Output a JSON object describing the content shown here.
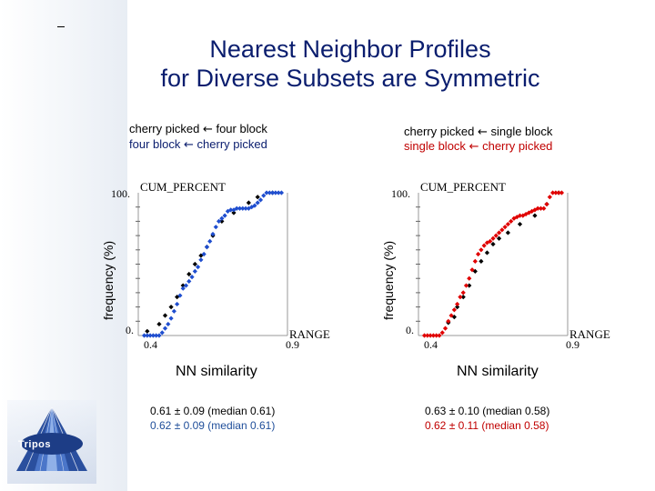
{
  "slide": {
    "title_line1": "Nearest Neighbor Profiles",
    "title_line2": "for Diverse Subsets are Symmetric",
    "logo_text": "Tripos"
  },
  "colors": {
    "title": "#0a1d6e",
    "blue_series": "#1f4ecf",
    "red_series": "#e00000",
    "black_series": "#000000"
  },
  "panels": [
    {
      "caption_line1_a": "cherry picked",
      "caption_line1_b": "four block",
      "caption_line2_a": "four block",
      "caption_line2_b": "cherry picked",
      "arrow": "←",
      "ylabel": "frequency (%)",
      "xlabel": "NN similarity",
      "stat_line1": "0.61 ± 0.09 (median 0.61)",
      "stat_line2": "0.62 ± 0.09 (median 0.61)"
    },
    {
      "caption_line1_a": "cherry picked",
      "caption_line1_b": "single block",
      "caption_line2_a": "single block",
      "caption_line2_b": "cherry picked",
      "arrow": "←",
      "ylabel": "frequency (%)",
      "xlabel": "NN similarity",
      "stat_line1": "0.63 ± 0.10 (median 0.58)",
      "stat_line2": "0.62 ± 0.11 (median 0.58)"
    }
  ],
  "chart_data": [
    {
      "type": "scatter",
      "title": "CUM_PERCENT",
      "xlabel": "RANGE",
      "ylabel": "frequency (%)",
      "xlim": [
        0.4,
        0.9
      ],
      "ylim": [
        0,
        100
      ],
      "x_ticks": [
        "0.4",
        "0.9"
      ],
      "y_ticks": [
        "0.",
        "100."
      ],
      "series": [
        {
          "name": "cherry picked vs four block",
          "color": "#000000",
          "points": [
            [
              0.43,
              3
            ],
            [
              0.47,
              8
            ],
            [
              0.49,
              14
            ],
            [
              0.51,
              20
            ],
            [
              0.53,
              27
            ],
            [
              0.55,
              35
            ],
            [
              0.57,
              43
            ],
            [
              0.59,
              50
            ],
            [
              0.61,
              56
            ],
            [
              0.63,
              62
            ],
            [
              0.65,
              70
            ],
            [
              0.68,
              80
            ],
            [
              0.72,
              86
            ],
            [
              0.77,
              93
            ],
            [
              0.8,
              97
            ],
            [
              0.85,
              100
            ]
          ]
        },
        {
          "name": "four block vs cherry picked",
          "color": "#1f4ecf",
          "points": [
            [
              0.42,
              0
            ],
            [
              0.43,
              0
            ],
            [
              0.44,
              0
            ],
            [
              0.45,
              0
            ],
            [
              0.46,
              0
            ],
            [
              0.47,
              0
            ],
            [
              0.48,
              2
            ],
            [
              0.49,
              5
            ],
            [
              0.5,
              8
            ],
            [
              0.51,
              12
            ],
            [
              0.52,
              17
            ],
            [
              0.53,
              22
            ],
            [
              0.54,
              28
            ],
            [
              0.55,
              33
            ],
            [
              0.56,
              35
            ],
            [
              0.57,
              38
            ],
            [
              0.58,
              41
            ],
            [
              0.59,
              45
            ],
            [
              0.6,
              48
            ],
            [
              0.61,
              53
            ],
            [
              0.62,
              57
            ],
            [
              0.63,
              62
            ],
            [
              0.64,
              66
            ],
            [
              0.65,
              71
            ],
            [
              0.66,
              76
            ],
            [
              0.67,
              80
            ],
            [
              0.68,
              82
            ],
            [
              0.69,
              84
            ],
            [
              0.7,
              87
            ],
            [
              0.71,
              88
            ],
            [
              0.72,
              88
            ],
            [
              0.73,
              89
            ],
            [
              0.74,
              89
            ],
            [
              0.75,
              89
            ],
            [
              0.76,
              89
            ],
            [
              0.77,
              89
            ],
            [
              0.78,
              90
            ],
            [
              0.79,
              91
            ],
            [
              0.8,
              93
            ],
            [
              0.81,
              95
            ],
            [
              0.82,
              98
            ],
            [
              0.83,
              100
            ],
            [
              0.84,
              100
            ],
            [
              0.85,
              100
            ],
            [
              0.86,
              100
            ],
            [
              0.87,
              100
            ],
            [
              0.88,
              100
            ]
          ]
        }
      ]
    },
    {
      "type": "scatter",
      "title": "CUM_PERCENT",
      "xlabel": "RANGE",
      "ylabel": "frequency (%)",
      "xlim": [
        0.4,
        0.9
      ],
      "ylim": [
        0,
        100
      ],
      "x_ticks": [
        "0.4",
        "0.9"
      ],
      "y_ticks": [
        "0.",
        "100."
      ],
      "series": [
        {
          "name": "cherry picked vs single block",
          "color": "#000000",
          "points": [
            [
              0.5,
              9
            ],
            [
              0.52,
              13
            ],
            [
              0.53,
              20
            ],
            [
              0.55,
              27
            ],
            [
              0.57,
              35
            ],
            [
              0.59,
              45
            ],
            [
              0.61,
              52
            ],
            [
              0.63,
              58
            ],
            [
              0.65,
              64
            ],
            [
              0.67,
              68
            ],
            [
              0.7,
              72
            ],
            [
              0.74,
              78
            ],
            [
              0.79,
              84
            ],
            [
              0.83,
              92
            ],
            [
              0.87,
              100
            ]
          ]
        },
        {
          "name": "single block vs cherry picked",
          "color": "#e00000",
          "points": [
            [
              0.42,
              0
            ],
            [
              0.43,
              0
            ],
            [
              0.44,
              0
            ],
            [
              0.45,
              0
            ],
            [
              0.46,
              0
            ],
            [
              0.47,
              0
            ],
            [
              0.48,
              2
            ],
            [
              0.49,
              5
            ],
            [
              0.5,
              10
            ],
            [
              0.51,
              14
            ],
            [
              0.52,
              18
            ],
            [
              0.53,
              22
            ],
            [
              0.54,
              27
            ],
            [
              0.55,
              30
            ],
            [
              0.56,
              35
            ],
            [
              0.57,
              40
            ],
            [
              0.58,
              46
            ],
            [
              0.59,
              52
            ],
            [
              0.6,
              57
            ],
            [
              0.61,
              60
            ],
            [
              0.62,
              63
            ],
            [
              0.63,
              65
            ],
            [
              0.64,
              66
            ],
            [
              0.65,
              68
            ],
            [
              0.66,
              70
            ],
            [
              0.67,
              72
            ],
            [
              0.68,
              74
            ],
            [
              0.69,
              76
            ],
            [
              0.7,
              78
            ],
            [
              0.71,
              80
            ],
            [
              0.72,
              82
            ],
            [
              0.73,
              83
            ],
            [
              0.74,
              84
            ],
            [
              0.75,
              84
            ],
            [
              0.76,
              85
            ],
            [
              0.77,
              86
            ],
            [
              0.78,
              87
            ],
            [
              0.79,
              88
            ],
            [
              0.8,
              89
            ],
            [
              0.81,
              89
            ],
            [
              0.82,
              89
            ],
            [
              0.83,
              92
            ],
            [
              0.84,
              97
            ],
            [
              0.85,
              100
            ],
            [
              0.86,
              100
            ],
            [
              0.87,
              100
            ],
            [
              0.88,
              100
            ]
          ]
        }
      ]
    }
  ]
}
